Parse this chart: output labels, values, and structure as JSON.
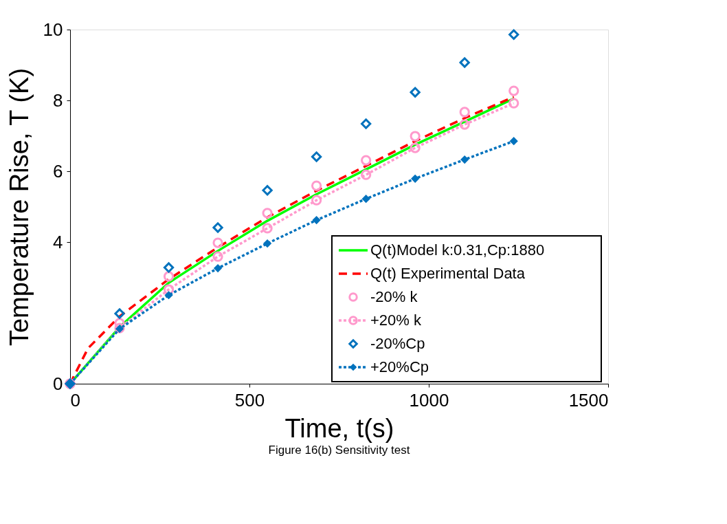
{
  "chart_data": {
    "type": "line",
    "xlabel": "Time, t(s)",
    "ylabel": "Temperature Rise, T (K)",
    "annotations": [
      "Figure 16(b) Sensitivity test"
    ],
    "x": [
      0,
      138,
      275,
      412,
      550,
      687,
      825,
      962,
      1100,
      1237
    ],
    "xlim": [
      0,
      1500
    ],
    "xticks": [
      0,
      500,
      1000,
      1500
    ],
    "ylim": [
      0,
      10
    ],
    "yticks": [
      0,
      4,
      6,
      8,
      10
    ],
    "grid": false,
    "legend": "bottom right",
    "series": [
      {
        "name": "Q(t)Model k:0.31,Cp:1880",
        "color": "#00ff00",
        "line_style": "solid",
        "marker": "none",
        "values": [
          0,
          1.6,
          2.85,
          3.75,
          4.6,
          5.35,
          6.05,
          6.75,
          7.4,
          8.05
        ]
      },
      {
        "name": "Q(t) Experimental Data",
        "color": "#ff0000",
        "line_style": "dashed",
        "marker": "none",
        "x": [
          0,
          50,
          138,
          275,
          412,
          550,
          687,
          825,
          962,
          1100,
          1237
        ],
        "values": [
          0,
          1.0,
          1.9,
          2.95,
          3.85,
          4.7,
          5.45,
          6.15,
          6.85,
          7.5,
          8.1
        ]
      },
      {
        "name": "-20% k",
        "type": "scatter",
        "color": "#ff99cc",
        "marker": "circle",
        "values": [
          0,
          1.71,
          3.03,
          3.98,
          4.82,
          5.59,
          6.31,
          6.99,
          7.67,
          8.27
        ]
      },
      {
        "name": "+20% k",
        "color": "#ff99cc",
        "line_style": "dotted",
        "marker": "circle",
        "values": [
          0,
          1.57,
          2.66,
          3.59,
          4.39,
          5.18,
          5.9,
          6.66,
          7.32,
          7.92
        ]
      },
      {
        "name": "-20%Cp",
        "type": "scatter",
        "color": "#0072bd",
        "marker": "diamond",
        "values": [
          0,
          1.98,
          3.28,
          4.41,
          5.46,
          6.41,
          7.34,
          8.23,
          9.07,
          9.86
        ]
      },
      {
        "name": "+20%Cp",
        "color": "#0072bd",
        "line_style": "dotted",
        "marker": "diamond",
        "values": [
          0,
          1.55,
          2.5,
          3.26,
          3.96,
          4.62,
          5.22,
          5.79,
          6.33,
          6.85
        ]
      }
    ]
  }
}
